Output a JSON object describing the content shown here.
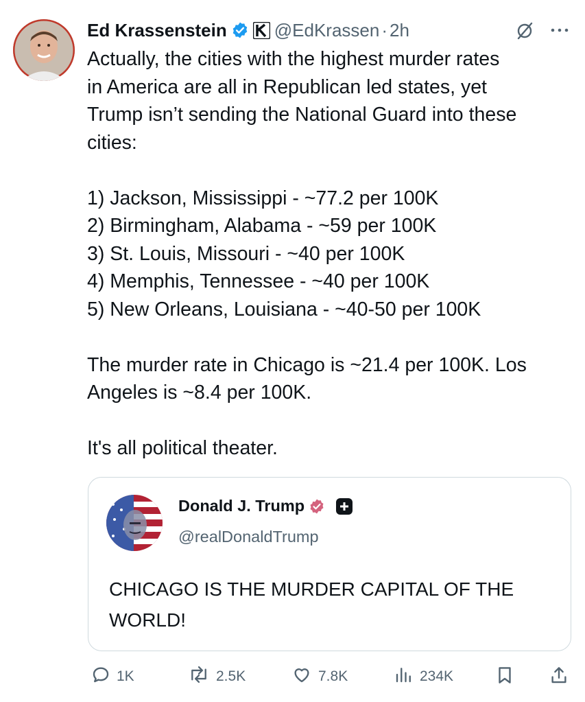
{
  "tweet": {
    "author_name": "Ed Krassenstein",
    "handle": "@EdKrassen",
    "separator": "·",
    "time": "2h",
    "text": "Actually, the cities with the highest murder rates\nin America are all in Republican led states, yet\nTrump isn’t sending the National Guard into these\ncities:\n\n1) Jackson, Mississippi - ~77.2 per 100K\n2) Birmingham, Alabama - ~59 per 100K\n3) St. Louis, Missouri - ~40 per 100K\n4) Memphis, Tennessee - ~40 per 100K\n5) New Orleans, Louisiana - ~40-50 per 100K\n\nThe murder rate in Chicago is ~21.4 per 100K. Los\nAngeles is ~8.4 per 100K.\n\nIt's all political theater."
  },
  "quote": {
    "author_name": "Donald J. Trump",
    "handle": "@realDonaldTrump",
    "text": "CHICAGO IS THE MURDER CAPITAL OF THE WORLD!"
  },
  "actions": {
    "replies": "1K",
    "reposts": "2.5K",
    "likes": "7.8K",
    "views": "234K"
  },
  "icons": [
    "verified-badge-icon",
    "k-affiliate-badge-icon",
    "grok-icon",
    "more-icon",
    "quote-verified-badge-icon",
    "plus-badge-icon",
    "reply-icon",
    "repost-icon",
    "like-icon",
    "views-icon",
    "bookmark-icon",
    "share-icon"
  ],
  "colors": {
    "text": "#0f1419",
    "secondary": "#536471",
    "verified_blue": "#1d9bf0",
    "verified_pink": "#d4637e",
    "border": "#cfd9de"
  }
}
